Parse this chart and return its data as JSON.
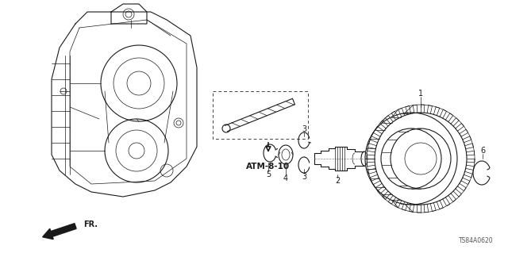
{
  "bg_color": "#ffffff",
  "line_color": "#1a1a1a",
  "title_code": "ATM-8-10",
  "part_code": "TS84A0620",
  "fr_label": "FR.",
  "figsize": [
    6.4,
    3.19
  ],
  "dpi": 100,
  "xlim": [
    0,
    640
  ],
  "ylim": [
    0,
    319
  ]
}
